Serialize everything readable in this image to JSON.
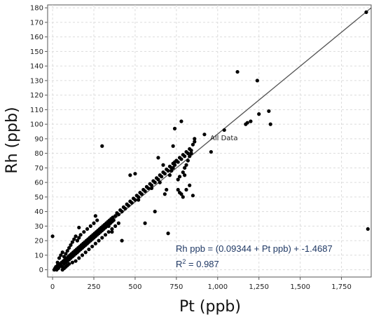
{
  "chart_data": {
    "type": "scatter",
    "title": "",
    "xlabel": "Pt (ppb)",
    "ylabel": "Rh (ppb)",
    "xlim": [
      -30,
      1930
    ],
    "ylim": [
      -5,
      182
    ],
    "xticks": [
      0,
      250,
      500,
      750,
      1000,
      1250,
      1500,
      1750
    ],
    "xtick_labels": [
      "0",
      "250",
      "500",
      "750",
      "1,000",
      "1,250",
      "1,500",
      "1,750"
    ],
    "yticks": [
      0,
      10,
      20,
      30,
      40,
      50,
      60,
      70,
      80,
      90,
      100,
      110,
      120,
      130,
      140,
      150,
      160,
      170,
      180
    ],
    "ytick_labels": [
      "0",
      "10",
      "20",
      "30",
      "40",
      "50",
      "60",
      "70",
      "80",
      "90",
      "100",
      "110",
      "120",
      "130",
      "140",
      "150",
      "160",
      "170",
      "180"
    ],
    "grid": true,
    "series": [
      {
        "points": [
          [
            10,
            0
          ],
          [
            15,
            1
          ],
          [
            20,
            2
          ],
          [
            25,
            0
          ],
          [
            30,
            3
          ],
          [
            35,
            1
          ],
          [
            40,
            2
          ],
          [
            45,
            4
          ],
          [
            50,
            3
          ],
          [
            55,
            5
          ],
          [
            60,
            2
          ],
          [
            65,
            6
          ],
          [
            70,
            4
          ],
          [
            75,
            7
          ],
          [
            80,
            5
          ],
          [
            85,
            8
          ],
          [
            90,
            6
          ],
          [
            95,
            9
          ],
          [
            100,
            7
          ],
          [
            105,
            10
          ],
          [
            110,
            8
          ],
          [
            115,
            11
          ],
          [
            120,
            9
          ],
          [
            125,
            12
          ],
          [
            130,
            10
          ],
          [
            135,
            13
          ],
          [
            140,
            11
          ],
          [
            145,
            14
          ],
          [
            150,
            12
          ],
          [
            155,
            15
          ],
          [
            160,
            13
          ],
          [
            165,
            16
          ],
          [
            170,
            14
          ],
          [
            175,
            17
          ],
          [
            180,
            15
          ],
          [
            185,
            18
          ],
          [
            190,
            16
          ],
          [
            195,
            19
          ],
          [
            200,
            17
          ],
          [
            205,
            20
          ],
          [
            210,
            18
          ],
          [
            215,
            21
          ],
          [
            220,
            19
          ],
          [
            225,
            22
          ],
          [
            230,
            20
          ],
          [
            235,
            23
          ],
          [
            240,
            21
          ],
          [
            245,
            24
          ],
          [
            250,
            22
          ],
          [
            255,
            25
          ],
          [
            260,
            23
          ],
          [
            265,
            26
          ],
          [
            270,
            24
          ],
          [
            275,
            27
          ],
          [
            280,
            25
          ],
          [
            285,
            28
          ],
          [
            290,
            26
          ],
          [
            295,
            29
          ],
          [
            300,
            27
          ],
          [
            305,
            30
          ],
          [
            310,
            28
          ],
          [
            315,
            31
          ],
          [
            320,
            29
          ],
          [
            325,
            32
          ],
          [
            330,
            30
          ],
          [
            335,
            33
          ],
          [
            340,
            31
          ],
          [
            345,
            34
          ],
          [
            350,
            32
          ],
          [
            355,
            35
          ],
          [
            360,
            33
          ],
          [
            365,
            36
          ],
          [
            370,
            34
          ],
          [
            380,
            37
          ],
          [
            390,
            39
          ],
          [
            400,
            38
          ],
          [
            410,
            41
          ],
          [
            420,
            40
          ],
          [
            430,
            43
          ],
          [
            440,
            42
          ],
          [
            450,
            45
          ],
          [
            460,
            44
          ],
          [
            470,
            47
          ],
          [
            480,
            46
          ],
          [
            490,
            49
          ],
          [
            500,
            48
          ],
          [
            510,
            51
          ],
          [
            520,
            50
          ],
          [
            530,
            53
          ],
          [
            540,
            52
          ],
          [
            550,
            55
          ],
          [
            560,
            54
          ],
          [
            570,
            57
          ],
          [
            580,
            56
          ],
          [
            590,
            59
          ],
          [
            600,
            58
          ],
          [
            610,
            61
          ],
          [
            620,
            60
          ],
          [
            630,
            63
          ],
          [
            640,
            62
          ],
          [
            650,
            65
          ],
          [
            660,
            64
          ],
          [
            670,
            67
          ],
          [
            680,
            66
          ],
          [
            690,
            69
          ],
          [
            700,
            68
          ],
          [
            710,
            71
          ],
          [
            720,
            70
          ],
          [
            730,
            73
          ],
          [
            740,
            72
          ],
          [
            750,
            75
          ],
          [
            760,
            74
          ],
          [
            770,
            77
          ],
          [
            780,
            76
          ],
          [
            790,
            79
          ],
          [
            800,
            78
          ],
          [
            810,
            81
          ],
          [
            820,
            80
          ],
          [
            830,
            83
          ],
          [
            840,
            82
          ],
          [
            60,
            0
          ],
          [
            70,
            1
          ],
          [
            80,
            2
          ],
          [
            90,
            3
          ],
          [
            100,
            4
          ],
          [
            120,
            5
          ],
          [
            140,
            6
          ],
          [
            160,
            8
          ],
          [
            180,
            10
          ],
          [
            200,
            12
          ],
          [
            220,
            14
          ],
          [
            240,
            16
          ],
          [
            260,
            18
          ],
          [
            280,
            20
          ],
          [
            300,
            22
          ],
          [
            320,
            24
          ],
          [
            340,
            26
          ],
          [
            360,
            28
          ],
          [
            380,
            30
          ],
          [
            400,
            32
          ],
          [
            30,
            5
          ],
          [
            40,
            8
          ],
          [
            50,
            10
          ],
          [
            60,
            12
          ],
          [
            70,
            9
          ],
          [
            80,
            11
          ],
          [
            90,
            13
          ],
          [
            100,
            15
          ],
          [
            110,
            17
          ],
          [
            120,
            19
          ],
          [
            130,
            21
          ],
          [
            140,
            23
          ],
          [
            150,
            20
          ],
          [
            160,
            22
          ],
          [
            170,
            24
          ],
          [
            190,
            26
          ],
          [
            210,
            28
          ],
          [
            230,
            30
          ],
          [
            250,
            32
          ],
          [
            270,
            34
          ],
          [
            0,
            23
          ],
          [
            160,
            29
          ],
          [
            260,
            37
          ],
          [
            300,
            85
          ],
          [
            340,
            30
          ],
          [
            360,
            26
          ],
          [
            420,
            20
          ],
          [
            470,
            65
          ],
          [
            500,
            66
          ],
          [
            520,
            48
          ],
          [
            560,
            32
          ],
          [
            600,
            56
          ],
          [
            620,
            40
          ],
          [
            640,
            77
          ],
          [
            650,
            60
          ],
          [
            670,
            72
          ],
          [
            700,
            25
          ],
          [
            730,
            85
          ],
          [
            740,
            97
          ],
          [
            780,
            102
          ],
          [
            800,
            65
          ],
          [
            810,
            55
          ],
          [
            830,
            58
          ],
          [
            850,
            51
          ],
          [
            860,
            90
          ],
          [
            920,
            93
          ],
          [
            960,
            81
          ],
          [
            1040,
            96
          ],
          [
            1120,
            136
          ],
          [
            1170,
            100
          ],
          [
            1180,
            101
          ],
          [
            1200,
            102
          ],
          [
            1240,
            130
          ],
          [
            1250,
            107
          ],
          [
            1310,
            109
          ],
          [
            1320,
            100
          ],
          [
            1900,
            177
          ],
          [
            1910,
            28
          ],
          [
            800,
            70
          ],
          [
            810,
            72
          ],
          [
            820,
            75
          ],
          [
            830,
            78
          ],
          [
            840,
            80
          ],
          [
            850,
            86
          ],
          [
            860,
            88
          ],
          [
            760,
            55
          ],
          [
            770,
            53
          ],
          [
            780,
            52
          ],
          [
            790,
            50
          ],
          [
            710,
            65
          ],
          [
            720,
            68
          ],
          [
            730,
            70
          ],
          [
            740,
            74
          ],
          [
            760,
            62
          ],
          [
            770,
            64
          ],
          [
            790,
            67
          ],
          [
            690,
            55
          ],
          [
            680,
            52
          ]
        ]
      }
    ],
    "trendline": {
      "from": [
        0,
        0
      ],
      "to": [
        1930,
        180
      ]
    },
    "annotations": {
      "label": "All Data",
      "equation": "Rh ppb = (0.09344 + Pt ppb) + -1.4687",
      "r2_prefix": "R",
      "r2_sup": "2",
      "r2_suffix": " = 0.987"
    }
  }
}
